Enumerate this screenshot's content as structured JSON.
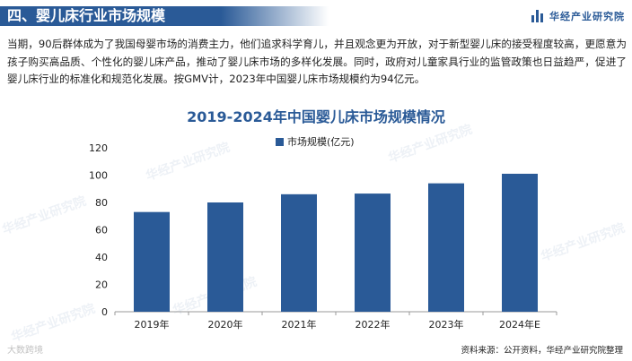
{
  "header": {
    "section_title": "四、婴儿床行业市场规模",
    "brand": "华经产业研究院"
  },
  "paragraph": "当期，90后群体成为了我国母婴市场的消费主力，他们追求科学育儿，并且观念更为开放，对于新型婴儿床的接受程度较高，更愿意为孩子购买高品质、个性化的婴儿床产品，推动了婴儿床市场的多样化发展。同时，政府对儿童家具行业的监管政策也日益趋严，促进了婴儿床行业的标准化和规范化发展。按GMV计，2023年中国婴儿床市场规模约为94亿元。",
  "watermark": "华经产业研究院",
  "corner_watermark": "大数跨境",
  "source": "资料来源：公开资料，华经产业研究院整理",
  "colors": {
    "accent": "#2a5a97",
    "bar": "#2a5a97"
  },
  "chart_data": {
    "type": "bar",
    "title": "2019-2024年中国婴儿床市场规模情况",
    "categories": [
      "2019年",
      "2020年",
      "2021年",
      "2022年",
      "2023年",
      "2024年E"
    ],
    "series": [
      {
        "name": "市场规模(亿元)",
        "values": [
          73,
          80,
          86,
          86.5,
          94,
          101
        ]
      }
    ],
    "yticks": [
      0,
      20,
      40,
      60,
      80,
      100,
      120
    ],
    "ylim": [
      0,
      120
    ],
    "legend": "top-center",
    "grid": false
  }
}
